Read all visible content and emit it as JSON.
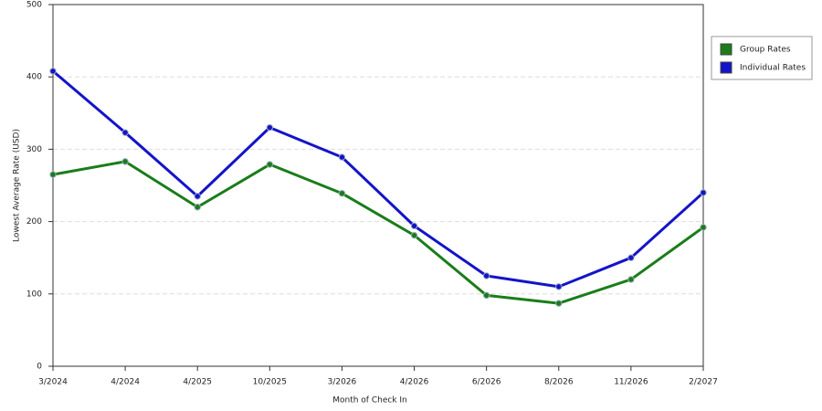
{
  "chart_data": {
    "type": "line",
    "x_label": "Month of Check In",
    "y_label": "Lowest Average Rate (USD)",
    "categories": [
      "3/2024",
      "4/2024",
      "4/2025",
      "10/2025",
      "3/2026",
      "4/2026",
      "6/2026",
      "8/2026",
      "11/2026",
      "2/2027"
    ],
    "series": [
      {
        "name": "Group Rates",
        "color": "#1a7d1a",
        "values": [
          265,
          283,
          220,
          279,
          239,
          181,
          98,
          87,
          120,
          192
        ]
      },
      {
        "name": "Individual Rates",
        "color": "#1414c8",
        "values": [
          408,
          323,
          235,
          330,
          289,
          194,
          125,
          110,
          150,
          240
        ]
      }
    ],
    "ylim": [
      0,
      500
    ],
    "yticks": [
      0,
      100,
      200,
      300,
      400,
      500
    ],
    "grid": true,
    "legend": "right"
  }
}
